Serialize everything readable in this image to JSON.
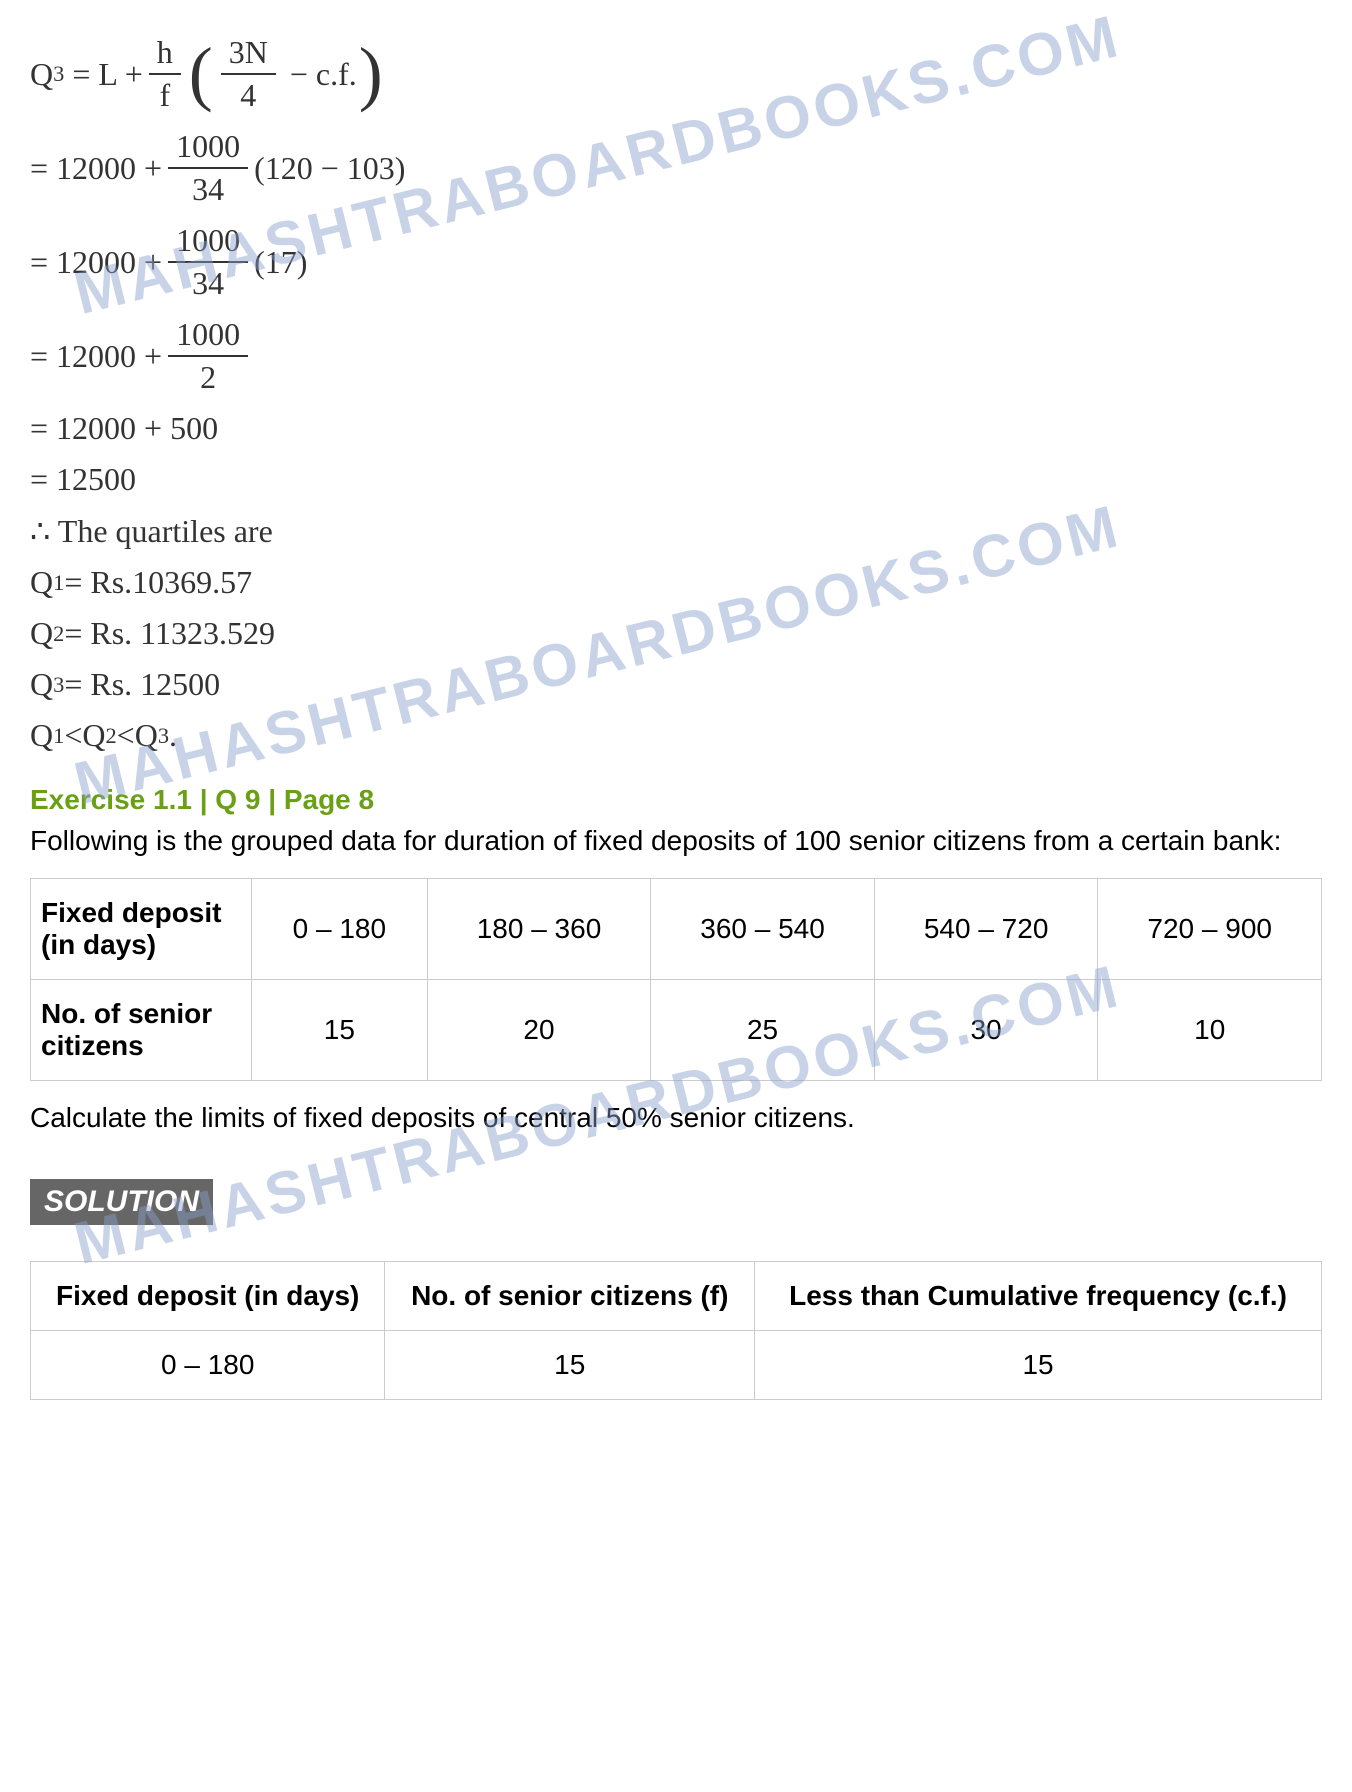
{
  "watermark": "MAHASHTRABOARDBOOKS.COM",
  "formula": {
    "lhs": "Q",
    "lhs_sub": "3",
    "eq1_a": "= L +",
    "h": "h",
    "f": "f",
    "threeN": "3N",
    "four": "4",
    "minus_cf": "− c.f."
  },
  "steps": [
    {
      "pre": "= 12000 +",
      "num": "1000",
      "den": "34",
      "post": "(120 − 103)"
    },
    {
      "pre": "= 12000 +",
      "num": "1000",
      "den": "34",
      "post": "(17)"
    },
    {
      "pre": "= 12000 +",
      "num": "1000",
      "den": "2",
      "post": ""
    }
  ],
  "plain_steps": [
    "= 12000 + 500",
    "= 12500"
  ],
  "conclusion_intro": "∴ The quartiles are",
  "quartiles": [
    {
      "label": "Q",
      "sub": "1",
      "val": " =  Rs.10369.57"
    },
    {
      "label": "Q",
      "sub": "2",
      "val": " = Rs. 11323.529"
    },
    {
      "label": "Q",
      "sub": "3",
      "val": " = Rs. 12500"
    }
  ],
  "relation": {
    "a": "Q",
    "as": "1",
    "b": "Q",
    "bs": "2",
    "c": "Q",
    "cs": "3",
    "lt": " < ",
    "dot": "."
  },
  "exercise_header": "Exercise 1.1 | Q 9 | Page 8",
  "question_text": "Following is the grouped data for duration of fixed deposits of 100 senior citizens from a certain bank:",
  "table1": {
    "row1_head": "Fixed deposit (in days)",
    "row1": [
      "0 – 180",
      "180 – 360",
      "360 – 540",
      "540 – 720",
      "720 – 900"
    ],
    "row2_head": "No. of senior citizens",
    "row2": [
      "15",
      "20",
      "25",
      "30",
      "10"
    ]
  },
  "calc_text": "Calculate the limits of fixed deposits of central 50% senior citizens.",
  "solution_label": "SOLUTION",
  "table2": {
    "headers": [
      "Fixed deposit (in days)",
      "No. of senior citizens\n(f)",
      "Less than Cumulative frequency\n(c.f.)"
    ],
    "row": [
      "0 – 180",
      "15",
      "15"
    ]
  },
  "styles": {
    "exercise_color": "#6aa015",
    "watermark_color": "#8aa0cc",
    "border_color": "#cccccc"
  }
}
